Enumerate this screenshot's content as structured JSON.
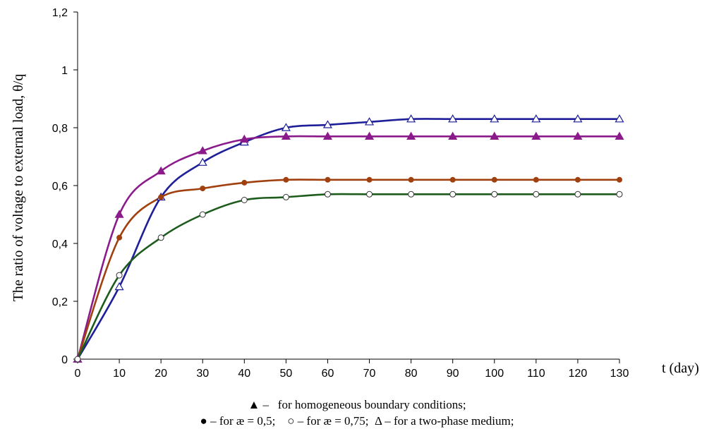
{
  "chart_data": {
    "type": "line",
    "xlabel": "t (day)",
    "ylabel": "The ratio of voltage to external load,  θ/q",
    "xlim": [
      0,
      130
    ],
    "ylim": [
      0,
      1.2
    ],
    "xticks": [
      "0",
      "10",
      "20",
      "30",
      "40",
      "50",
      "60",
      "70",
      "80",
      "90",
      "100",
      "110",
      "120",
      "130"
    ],
    "yticks": [
      "0",
      "0,2",
      "0,4",
      "0,6",
      "0,8",
      "1",
      "1,2"
    ],
    "grid": false,
    "series": [
      {
        "marker": "open-triangle",
        "color": "#1f1f99",
        "x": [
          0,
          10,
          20,
          30,
          40,
          50,
          60,
          70,
          80,
          90,
          100,
          110,
          120,
          130
        ],
        "y": [
          0,
          0.25,
          0.56,
          0.68,
          0.75,
          0.8,
          0.81,
          0.82,
          0.83,
          0.83,
          0.83,
          0.83,
          0.83,
          0.83
        ]
      },
      {
        "marker": "filled-triangle",
        "color": "#8b1a8b",
        "x": [
          0,
          10,
          20,
          30,
          40,
          50,
          60,
          70,
          80,
          90,
          100,
          110,
          120,
          130
        ],
        "y": [
          0,
          0.5,
          0.65,
          0.72,
          0.76,
          0.77,
          0.77,
          0.77,
          0.77,
          0.77,
          0.77,
          0.77,
          0.77,
          0.77
        ]
      },
      {
        "marker": "filled-circle",
        "color": "#a0400f",
        "x": [
          0,
          10,
          20,
          30,
          40,
          50,
          60,
          70,
          80,
          90,
          100,
          110,
          120,
          130
        ],
        "y": [
          0,
          0.42,
          0.56,
          0.59,
          0.61,
          0.62,
          0.62,
          0.62,
          0.62,
          0.62,
          0.62,
          0.62,
          0.62,
          0.62
        ]
      },
      {
        "marker": "open-circle",
        "color": "#1e5c1e",
        "x": [
          0,
          10,
          20,
          30,
          40,
          50,
          60,
          70,
          80,
          90,
          100,
          110,
          120,
          130
        ],
        "y": [
          0,
          0.29,
          0.42,
          0.5,
          0.55,
          0.56,
          0.57,
          0.57,
          0.57,
          0.57,
          0.57,
          0.57,
          0.57,
          0.57
        ]
      }
    ]
  },
  "caption": {
    "line1": "▲ –   for homogeneous boundary conditions;",
    "line2": "● – for æ = 0,5;    ○ – for æ = 0,75;  Δ – for a two-phase medium;"
  }
}
